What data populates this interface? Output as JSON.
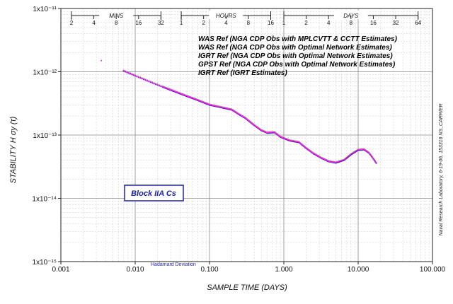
{
  "chart_data": {
    "type": "scatter",
    "title": "",
    "xlabel": "SAMPLE TIME (DAYS)",
    "ylabel": "STABILITY   H σy  (τ)",
    "x_scale": "log",
    "y_scale": "log",
    "xlim": [
      0.001,
      100
    ],
    "ylim": [
      1e-15,
      1e-11
    ],
    "grid": true,
    "x_tick_labels": [
      "0.001",
      "0.010",
      "0.100",
      "1.000",
      "10.000",
      "100.000"
    ],
    "y_tick_labels": [
      "1x10⁻¹⁵",
      "1x10⁻¹⁴",
      "1x10⁻¹³",
      "1x10⁻¹²",
      "1x10⁻¹¹"
    ],
    "top_axes": [
      {
        "label": "MINS",
        "ticks": [
          "2",
          "4",
          "8",
          "16",
          "32"
        ],
        "unit_days": 0.000694444
      },
      {
        "label": "HOURS",
        "ticks": [
          "1",
          "2",
          "4",
          "8",
          "16"
        ],
        "unit_days": 0.0416667
      },
      {
        "label": "DAYS",
        "ticks": [
          "1",
          "2",
          "4",
          "8",
          "16",
          "32",
          "64"
        ],
        "unit_days": 1
      }
    ],
    "legend_position": "top-right",
    "series": [
      {
        "name": "WAS Ref (NGA CDP Obs with MPLCVTT & CCTT Estimates)",
        "color": "#22dd22"
      },
      {
        "name": "WAS Ref (NGA CDP Obs with Optimal Network Estimates)",
        "color": "#ff2a1a"
      },
      {
        "name": "IGRT Ref (NGA CDP Obs with Optimal Network Estimates)",
        "color": "#1a1a9a"
      },
      {
        "name": "GPST Ref (NGA CDP Obs with Optimal Network Estimates)",
        "color": "#111111"
      },
      {
        "name": "IGRT Ref (IGRT Estimates)",
        "color": "#ee33dd"
      }
    ],
    "curve_points": [
      {
        "x": 0.0035,
        "y": 1.5e-12
      },
      {
        "x": 0.007,
        "y": 1.05e-12
      },
      {
        "x": 0.01,
        "y": 8.8e-13
      },
      {
        "x": 0.02,
        "y": 6.3e-13
      },
      {
        "x": 0.04,
        "y": 4.6e-13
      },
      {
        "x": 0.07,
        "y": 3.6e-13
      },
      {
        "x": 0.1,
        "y": 3.05e-13
      },
      {
        "x": 0.15,
        "y": 2.75e-13
      },
      {
        "x": 0.2,
        "y": 2.55e-13
      },
      {
        "x": 0.25,
        "y": 2.15e-13
      },
      {
        "x": 0.3,
        "y": 1.9e-13
      },
      {
        "x": 0.4,
        "y": 1.45e-13
      },
      {
        "x": 0.5,
        "y": 1.2e-13
      },
      {
        "x": 0.6,
        "y": 1.1e-13
      },
      {
        "x": 0.75,
        "y": 1.12e-13
      },
      {
        "x": 0.9,
        "y": 9.5e-14
      },
      {
        "x": 1.2,
        "y": 8.3e-14
      },
      {
        "x": 1.6,
        "y": 7.8e-14
      },
      {
        "x": 2.0,
        "y": 6.3e-14
      },
      {
        "x": 2.5,
        "y": 5.2e-14
      },
      {
        "x": 3.2,
        "y": 4.4e-14
      },
      {
        "x": 4.0,
        "y": 3.9e-14
      },
      {
        "x": 5.0,
        "y": 3.7e-14
      },
      {
        "x": 6.5,
        "y": 4.1e-14
      },
      {
        "x": 8.0,
        "y": 5e-14
      },
      {
        "x": 10.0,
        "y": 5.9e-14
      },
      {
        "x": 12.0,
        "y": 6e-14
      },
      {
        "x": 14.0,
        "y": 5.3e-14
      },
      {
        "x": 16.0,
        "y": 4.3e-14
      },
      {
        "x": 18.0,
        "y": 3.5e-14
      }
    ],
    "annotations": {
      "box_label": "Block IIA Cs",
      "method": "Hadamard Deviation",
      "side_note": "Naval Research Laboratory,  6-19-06, 153316   NS_CARRIER"
    }
  }
}
